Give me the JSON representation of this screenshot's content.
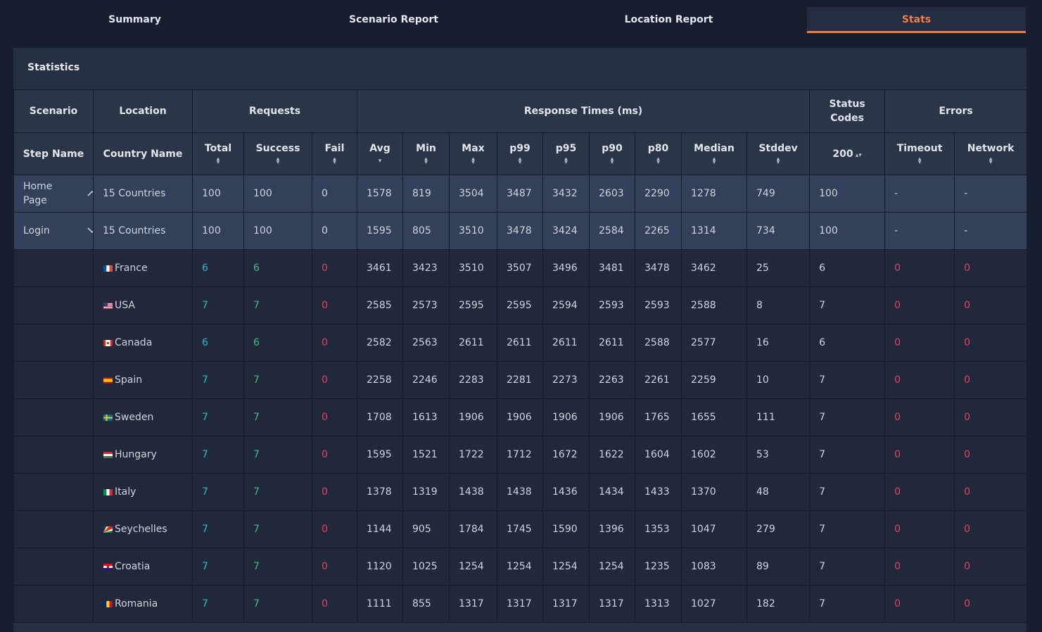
{
  "tabs": [
    "Summary",
    "Scenario Report",
    "Location Report",
    "Stats"
  ],
  "active_tab": "Stats",
  "panel_title": "Statistics",
  "header": {
    "groups": [
      "Scenario",
      "Location",
      "Requests",
      "Response Times (ms)",
      "Status Codes",
      "Errors"
    ],
    "columns": [
      "Step Name",
      "Country Name",
      "Total",
      "Success",
      "Fail",
      "Avg",
      "Min",
      "Max",
      "p99",
      "p95",
      "p90",
      "p80",
      "Median",
      "Stddev",
      "200",
      "Timeout",
      "Network"
    ]
  },
  "sort_icon": "sort-up-down-icon",
  "sort_desc_icon": "sort-down-icon",
  "colors": {
    "background": "#171e2e",
    "panel": "#263043",
    "active_tab": "#f07d45",
    "total": "#2fb9d5",
    "success": "#3fbf84",
    "fail": "#e0455e"
  },
  "rows": [
    {
      "type": "aggregate",
      "step": "Home Page",
      "expanded": true,
      "icon": "chevron-up-icon",
      "country": "15 Countries",
      "total": "100",
      "success": "100",
      "fail": "0",
      "avg": "1578",
      "min": "819",
      "max": "3504",
      "p99": "3487",
      "p95": "3432",
      "p90": "2603",
      "p80": "2290",
      "median": "1278",
      "stddev": "749",
      "s200": "100",
      "timeout": "-",
      "network": "-"
    },
    {
      "type": "aggregate",
      "step": "Login",
      "expanded": false,
      "icon": "chevron-down-icon",
      "country": "15 Countries",
      "total": "100",
      "success": "100",
      "fail": "0",
      "avg": "1595",
      "min": "805",
      "max": "3510",
      "p99": "3478",
      "p95": "3424",
      "p90": "2584",
      "p80": "2265",
      "median": "1314",
      "stddev": "734",
      "s200": "100",
      "timeout": "-",
      "network": "-"
    },
    {
      "type": "location",
      "step": "",
      "flag": "france-flag-icon",
      "country": "France",
      "total": "6",
      "success": "6",
      "fail": "0",
      "avg": "3461",
      "min": "3423",
      "max": "3510",
      "p99": "3507",
      "p95": "3496",
      "p90": "3481",
      "p80": "3478",
      "median": "3462",
      "stddev": "25",
      "s200": "6",
      "timeout": "0",
      "network": "0"
    },
    {
      "type": "location",
      "step": "",
      "flag": "usa-flag-icon",
      "country": "USA",
      "total": "7",
      "success": "7",
      "fail": "0",
      "avg": "2585",
      "min": "2573",
      "max": "2595",
      "p99": "2595",
      "p95": "2594",
      "p90": "2593",
      "p80": "2593",
      "median": "2588",
      "stddev": "8",
      "s200": "7",
      "timeout": "0",
      "network": "0"
    },
    {
      "type": "location",
      "step": "",
      "flag": "canada-flag-icon",
      "country": "Canada",
      "total": "6",
      "success": "6",
      "fail": "0",
      "avg": "2582",
      "min": "2563",
      "max": "2611",
      "p99": "2611",
      "p95": "2611",
      "p90": "2611",
      "p80": "2588",
      "median": "2577",
      "stddev": "16",
      "s200": "6",
      "timeout": "0",
      "network": "0"
    },
    {
      "type": "location",
      "step": "",
      "flag": "spain-flag-icon",
      "country": "Spain",
      "total": "7",
      "success": "7",
      "fail": "0",
      "avg": "2258",
      "min": "2246",
      "max": "2283",
      "p99": "2281",
      "p95": "2273",
      "p90": "2263",
      "p80": "2261",
      "median": "2259",
      "stddev": "10",
      "s200": "7",
      "timeout": "0",
      "network": "0"
    },
    {
      "type": "location",
      "step": "",
      "flag": "sweden-flag-icon",
      "country": "Sweden",
      "total": "7",
      "success": "7",
      "fail": "0",
      "avg": "1708",
      "min": "1613",
      "max": "1906",
      "p99": "1906",
      "p95": "1906",
      "p90": "1906",
      "p80": "1765",
      "median": "1655",
      "stddev": "111",
      "s200": "7",
      "timeout": "0",
      "network": "0"
    },
    {
      "type": "location",
      "step": "",
      "flag": "hungary-flag-icon",
      "country": "Hungary",
      "total": "7",
      "success": "7",
      "fail": "0",
      "avg": "1595",
      "min": "1521",
      "max": "1722",
      "p99": "1712",
      "p95": "1672",
      "p90": "1622",
      "p80": "1604",
      "median": "1602",
      "stddev": "53",
      "s200": "7",
      "timeout": "0",
      "network": "0"
    },
    {
      "type": "location",
      "step": "",
      "flag": "italy-flag-icon",
      "country": "Italy",
      "total": "7",
      "success": "7",
      "fail": "0",
      "avg": "1378",
      "min": "1319",
      "max": "1438",
      "p99": "1438",
      "p95": "1436",
      "p90": "1434",
      "p80": "1433",
      "median": "1370",
      "stddev": "48",
      "s200": "7",
      "timeout": "0",
      "network": "0"
    },
    {
      "type": "location",
      "step": "",
      "flag": "seychelles-flag-icon",
      "country": "Seychelles",
      "total": "7",
      "success": "7",
      "fail": "0",
      "avg": "1144",
      "min": "905",
      "max": "1784",
      "p99": "1745",
      "p95": "1590",
      "p90": "1396",
      "p80": "1353",
      "median": "1047",
      "stddev": "279",
      "s200": "7",
      "timeout": "0",
      "network": "0"
    },
    {
      "type": "location",
      "step": "",
      "flag": "croatia-flag-icon",
      "country": "Croatia",
      "total": "7",
      "success": "7",
      "fail": "0",
      "avg": "1120",
      "min": "1025",
      "max": "1254",
      "p99": "1254",
      "p95": "1254",
      "p90": "1254",
      "p80": "1235",
      "median": "1083",
      "stddev": "89",
      "s200": "7",
      "timeout": "0",
      "network": "0"
    },
    {
      "type": "location",
      "step": "",
      "flag": "romania-flag-icon",
      "country": "Romania",
      "total": "7",
      "success": "7",
      "fail": "0",
      "avg": "1111",
      "min": "855",
      "max": "1317",
      "p99": "1317",
      "p95": "1317",
      "p90": "1317",
      "p80": "1313",
      "median": "1027",
      "stddev": "182",
      "s200": "7",
      "timeout": "0",
      "network": "0"
    }
  ]
}
